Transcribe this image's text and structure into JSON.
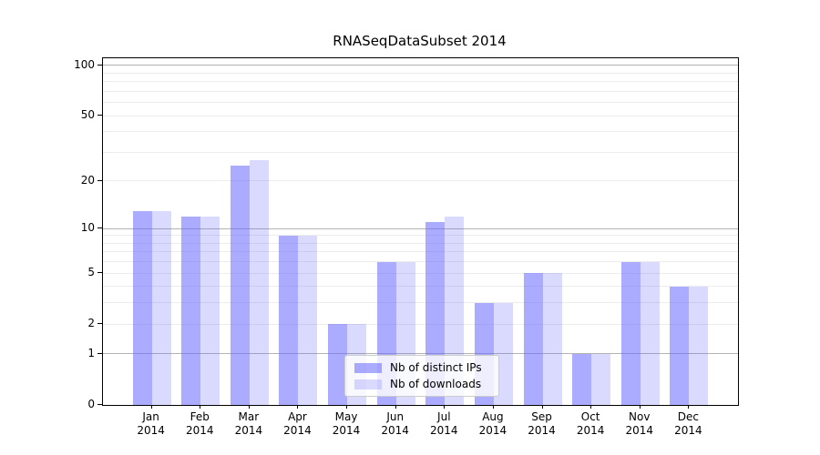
{
  "title": "RNASeqDataSubset 2014",
  "chart_data": {
    "type": "bar",
    "title": "RNASeqDataSubset 2014",
    "scale": "log1p",
    "categories": [
      "Jan",
      "Feb",
      "Mar",
      "Apr",
      "May",
      "Jun",
      "Jul",
      "Aug",
      "Sep",
      "Oct",
      "Nov",
      "Dec"
    ],
    "year_label": "2014",
    "series": [
      {
        "name": "Nb of distinct IPs",
        "color": "rgba(102,102,255,0.55)",
        "values": [
          13,
          12,
          25,
          9,
          2,
          6,
          11,
          3,
          5,
          1,
          6,
          4
        ]
      },
      {
        "name": "Nb of downloads",
        "color": "rgba(102,102,255,0.24)",
        "values": [
          13,
          12,
          27,
          9,
          2,
          6,
          12,
          3,
          5,
          1,
          6,
          4
        ]
      }
    ],
    "ytick_labels": [
      "100",
      "50",
      "20",
      "10",
      "5",
      "2",
      "1",
      "0"
    ],
    "ytick_values": [
      100,
      50,
      20,
      10,
      5,
      2,
      1,
      0
    ],
    "major_gridline_values": [
      1,
      10,
      100
    ],
    "minor_gridline_values": [
      2,
      3,
      4,
      5,
      6,
      7,
      8,
      9,
      20,
      30,
      40,
      50,
      60,
      70,
      80,
      90
    ],
    "ylim": [
      0,
      110
    ],
    "grid": "on",
    "legend_position": "lower center",
    "xlabel": "",
    "ylabel": ""
  },
  "colors": {
    "major_grid": "#b3b3b3",
    "minor_grid": "#ececec",
    "axis": "#000000",
    "text": "#000000",
    "legend_bg": "rgba(255,255,255,0.8)",
    "legend_border": "#cccccc",
    "background": "#ffffff"
  }
}
